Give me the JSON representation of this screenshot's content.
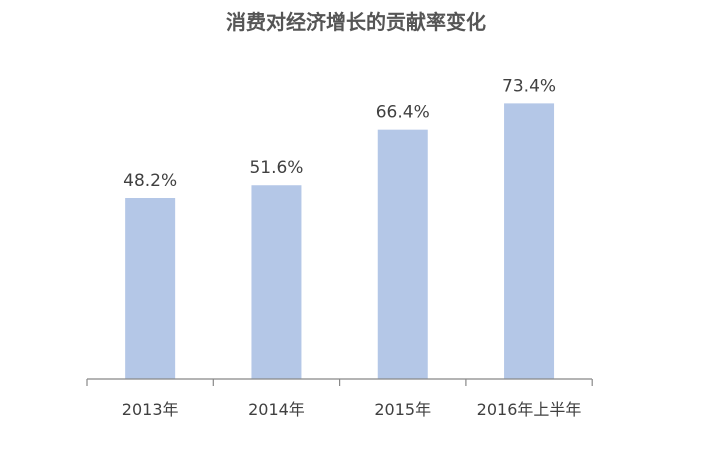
{
  "chart_data": {
    "type": "bar",
    "title": "消费对经济增长的贡献率变化",
    "categories": [
      "2013年",
      "2014年",
      "2015年",
      "2016年上半年"
    ],
    "values": [
      48.2,
      51.6,
      66.4,
      73.4
    ],
    "data_labels": [
      "48.2%",
      "51.6%",
      "66.4%",
      "73.4%"
    ],
    "xlabel": "",
    "ylabel": "",
    "ylim": [
      0,
      100
    ],
    "grid": false,
    "legend": "none",
    "bar_color": "#b4c7e7"
  }
}
